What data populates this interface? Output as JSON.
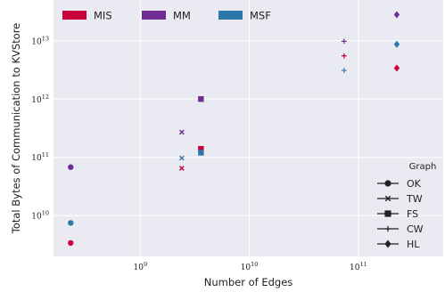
{
  "chart_data": {
    "type": "scatter",
    "xlabel": "Number of Edges",
    "ylabel": "Total Bytes of Communication to KVStore",
    "x_scale": "log",
    "y_scale": "log",
    "xlim": [
      160000000,
      600000000000
    ],
    "ylim": [
      2000000000,
      50000000000000
    ],
    "x_ticks": [
      {
        "value": 1000000000,
        "base": "10",
        "exp": "9"
      },
      {
        "value": 10000000000,
        "base": "10",
        "exp": "10"
      },
      {
        "value": 100000000000,
        "base": "10",
        "exp": "11"
      }
    ],
    "y_ticks": [
      {
        "value": 10000000000,
        "base": "10",
        "exp": "10"
      },
      {
        "value": 100000000000,
        "base": "10",
        "exp": "11"
      },
      {
        "value": 1000000000000,
        "base": "10",
        "exp": "12"
      },
      {
        "value": 10000000000000,
        "base": "10",
        "exp": "13"
      }
    ],
    "grid": true,
    "background": "#eaeaf2",
    "algorithm_legend": {
      "placement": "top-left",
      "entries": [
        {
          "name": "MIS",
          "color": "#c8003c"
        },
        {
          "name": "MM",
          "color": "#6f2c91"
        },
        {
          "name": "MSF",
          "color": "#2e77aa"
        }
      ]
    },
    "graph_legend": {
      "title": "Graph",
      "placement": "bottom-right",
      "entries": [
        {
          "name": "OK",
          "marker": "circle"
        },
        {
          "name": "TW",
          "marker": "x"
        },
        {
          "name": "FS",
          "marker": "square"
        },
        {
          "name": "CW",
          "marker": "plus"
        },
        {
          "name": "HL",
          "marker": "diamond"
        }
      ]
    },
    "series": [
      {
        "algorithm": "MIS",
        "graph": "OK",
        "x": 230000000,
        "y": 3400000000
      },
      {
        "algorithm": "MM",
        "graph": "OK",
        "x": 230000000,
        "y": 68000000000
      },
      {
        "algorithm": "MSF",
        "graph": "OK",
        "x": 230000000,
        "y": 7500000000
      },
      {
        "algorithm": "MIS",
        "graph": "TW",
        "x": 2400000000,
        "y": 65000000000
      },
      {
        "algorithm": "MM",
        "graph": "TW",
        "x": 2400000000,
        "y": 270000000000
      },
      {
        "algorithm": "MSF",
        "graph": "TW",
        "x": 2400000000,
        "y": 97000000000
      },
      {
        "algorithm": "MIS",
        "graph": "FS",
        "x": 3600000000,
        "y": 140000000000
      },
      {
        "algorithm": "MM",
        "graph": "FS",
        "x": 3600000000,
        "y": 1000000000000
      },
      {
        "algorithm": "MSF",
        "graph": "FS",
        "x": 3600000000,
        "y": 120000000000
      },
      {
        "algorithm": "MIS",
        "graph": "CW",
        "x": 74000000000,
        "y": 5500000000000
      },
      {
        "algorithm": "MM",
        "graph": "CW",
        "x": 74000000000,
        "y": 9800000000000
      },
      {
        "algorithm": "MSF",
        "graph": "CW",
        "x": 74000000000,
        "y": 3100000000000
      },
      {
        "algorithm": "MIS",
        "graph": "HL",
        "x": 225000000000,
        "y": 3400000000000
      },
      {
        "algorithm": "MM",
        "graph": "HL",
        "x": 225000000000,
        "y": 28000000000000
      },
      {
        "algorithm": "MSF",
        "graph": "HL",
        "x": 225000000000,
        "y": 8700000000000
      }
    ]
  }
}
